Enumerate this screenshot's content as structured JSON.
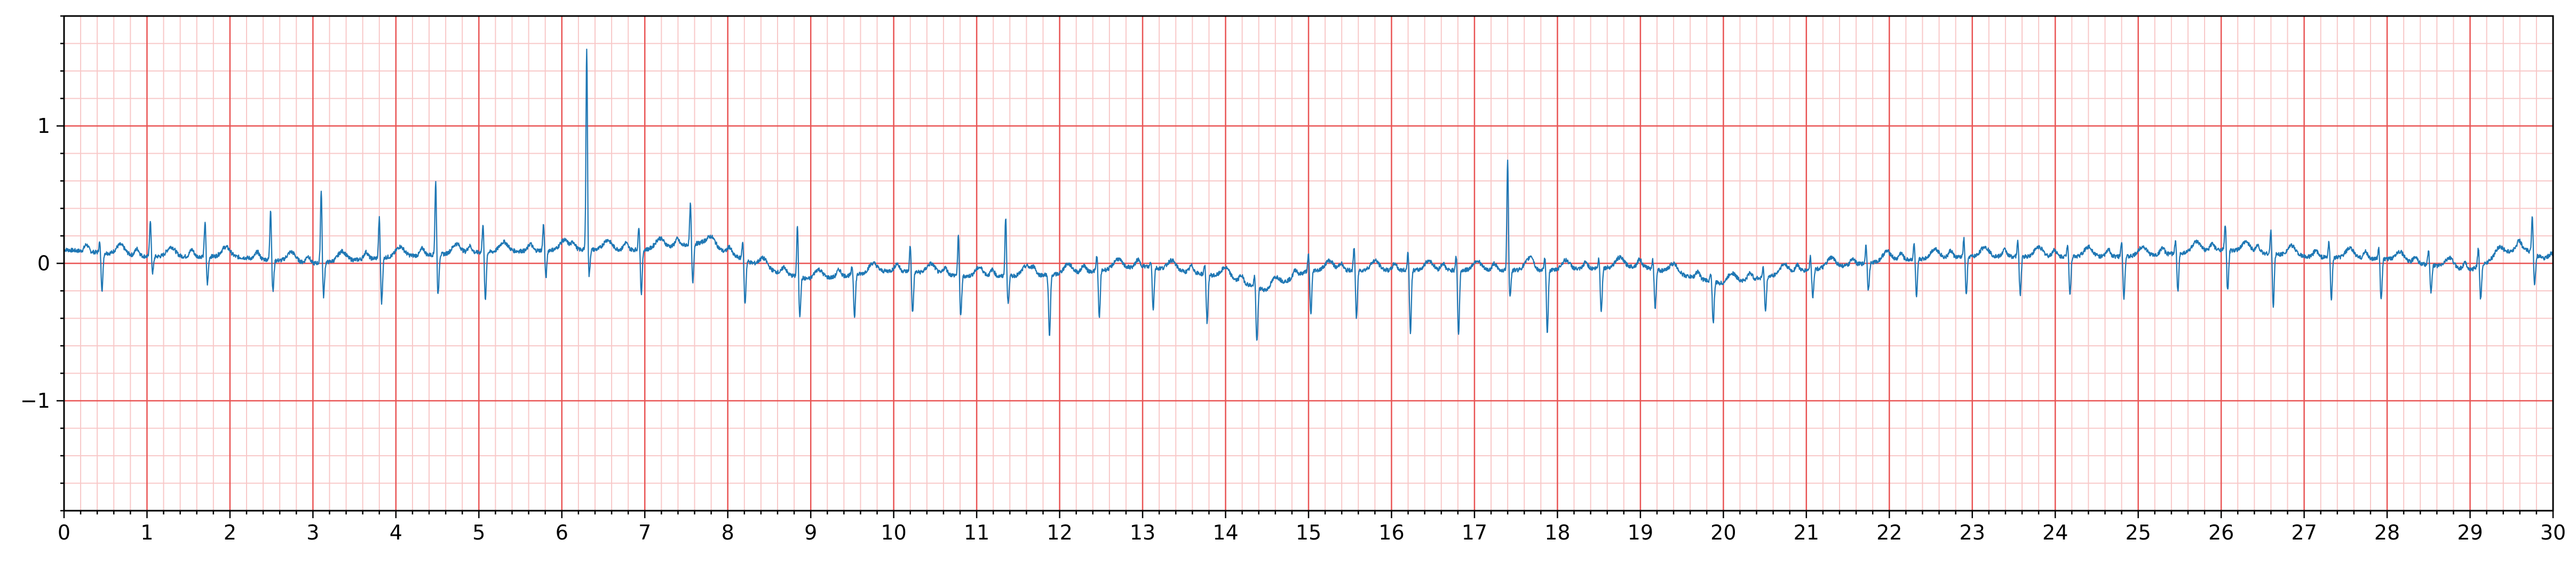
{
  "chart_data": {
    "type": "line",
    "title": "",
    "xlabel": "",
    "ylabel": "",
    "xlim": [
      0,
      30
    ],
    "ylim": [
      -1.8,
      1.8
    ],
    "x_ticks": [
      0,
      1,
      2,
      3,
      4,
      5,
      6,
      7,
      8,
      9,
      10,
      11,
      12,
      13,
      14,
      15,
      16,
      17,
      18,
      19,
      20,
      21,
      22,
      23,
      24,
      25,
      26,
      27,
      28,
      29,
      30
    ],
    "x_tick_labels": [
      "0",
      "1",
      "2",
      "3",
      "4",
      "5",
      "6",
      "7",
      "8",
      "9",
      "10",
      "11",
      "12",
      "13",
      "14",
      "15",
      "16",
      "17",
      "18",
      "19",
      "20",
      "21",
      "22",
      "23",
      "24",
      "25",
      "26",
      "27",
      "28",
      "29",
      "30"
    ],
    "y_ticks": [
      -1,
      0,
      1
    ],
    "y_tick_labels": [
      "−1",
      "0",
      "1"
    ],
    "grid": {
      "major": true,
      "minor": true,
      "major_color": "#e95454",
      "minor_color": "#f8c8c8"
    },
    "line_color": "#1f77b4",
    "series": [
      {
        "beats": [
          {
            "t": 0.43,
            "r": 0.08,
            "s": -0.27
          },
          {
            "t": 1.04,
            "r": 0.27,
            "s": -0.12
          },
          {
            "t": 1.7,
            "r": 0.26,
            "s": -0.2
          },
          {
            "t": 2.49,
            "r": 0.38,
            "s": -0.23
          },
          {
            "t": 3.1,
            "r": 0.54,
            "s": -0.25
          },
          {
            "t": 3.8,
            "r": 0.3,
            "s": -0.33
          },
          {
            "t": 4.48,
            "r": 0.54,
            "s": -0.3
          },
          {
            "t": 5.05,
            "r": 0.22,
            "s": -0.35
          },
          {
            "t": 5.78,
            "r": 0.2,
            "s": -0.2
          },
          {
            "t": 6.3,
            "r": 1.47,
            "s": -0.2
          },
          {
            "t": 6.93,
            "r": 0.18,
            "s": -0.32
          },
          {
            "t": 7.55,
            "r": 0.3,
            "s": -0.28
          },
          {
            "t": 8.18,
            "r": 0.14,
            "s": -0.32
          },
          {
            "t": 8.84,
            "r": 0.38,
            "s": -0.28
          },
          {
            "t": 9.5,
            "r": 0.07,
            "s": -0.3
          },
          {
            "t": 10.2,
            "r": 0.2,
            "s": -0.3
          },
          {
            "t": 10.78,
            "r": 0.3,
            "s": -0.3
          },
          {
            "t": 11.35,
            "r": 0.44,
            "s": -0.2
          },
          {
            "t": 11.85,
            "r": 0.0,
            "s": -0.45
          },
          {
            "t": 12.45,
            "r": 0.12,
            "s": -0.35
          },
          {
            "t": 13.1,
            "r": 0.05,
            "s": -0.3
          },
          {
            "t": 13.75,
            "r": 0.08,
            "s": -0.35
          },
          {
            "t": 14.35,
            "r": 0.08,
            "s": -0.4
          },
          {
            "t": 15.0,
            "r": 0.12,
            "s": -0.32
          },
          {
            "t": 15.55,
            "r": 0.18,
            "s": -0.35
          },
          {
            "t": 16.2,
            "r": 0.15,
            "s": -0.45
          },
          {
            "t": 16.78,
            "r": 0.12,
            "s": -0.47
          },
          {
            "t": 17.4,
            "r": 0.82,
            "s": -0.2
          },
          {
            "t": 17.85,
            "r": 0.1,
            "s": -0.45
          },
          {
            "t": 18.5,
            "r": 0.08,
            "s": -0.32
          },
          {
            "t": 19.15,
            "r": 0.07,
            "s": -0.28
          },
          {
            "t": 19.85,
            "r": 0.06,
            "s": -0.3
          },
          {
            "t": 20.48,
            "r": 0.08,
            "s": -0.25
          },
          {
            "t": 21.05,
            "r": 0.1,
            "s": -0.2
          },
          {
            "t": 21.72,
            "r": 0.14,
            "s": -0.2
          },
          {
            "t": 22.3,
            "r": 0.12,
            "s": -0.28
          },
          {
            "t": 22.9,
            "r": 0.14,
            "s": -0.28
          },
          {
            "t": 23.55,
            "r": 0.12,
            "s": -0.28
          },
          {
            "t": 24.15,
            "r": 0.1,
            "s": -0.28
          },
          {
            "t": 24.8,
            "r": 0.12,
            "s": -0.3
          },
          {
            "t": 25.45,
            "r": 0.1,
            "s": -0.28
          },
          {
            "t": 26.05,
            "r": 0.2,
            "s": -0.3
          },
          {
            "t": 26.6,
            "r": 0.18,
            "s": -0.38
          },
          {
            "t": 27.3,
            "r": 0.12,
            "s": -0.3
          },
          {
            "t": 27.9,
            "r": 0.1,
            "s": -0.3
          },
          {
            "t": 28.5,
            "r": 0.12,
            "s": -0.2
          },
          {
            "t": 29.1,
            "r": 0.14,
            "s": -0.25
          },
          {
            "t": 29.75,
            "r": 0.28,
            "s": -0.22
          }
        ],
        "baseline": [
          [
            0,
            0.1
          ],
          [
            1,
            0.05
          ],
          [
            2,
            0.05
          ],
          [
            3,
            0.0
          ],
          [
            4,
            0.05
          ],
          [
            5,
            0.08
          ],
          [
            6,
            0.1
          ],
          [
            7,
            0.1
          ],
          [
            7.7,
            0.15
          ],
          [
            8.5,
            -0.05
          ],
          [
            9,
            -0.12
          ],
          [
            10,
            -0.05
          ],
          [
            11,
            -0.1
          ],
          [
            12,
            -0.08
          ],
          [
            13,
            -0.02
          ],
          [
            14,
            -0.1
          ],
          [
            14.5,
            -0.2
          ],
          [
            15,
            -0.05
          ],
          [
            16,
            -0.05
          ],
          [
            17,
            -0.05
          ],
          [
            18,
            -0.05
          ],
          [
            19,
            -0.02
          ],
          [
            20,
            -0.15
          ],
          [
            21,
            -0.05
          ],
          [
            22,
            0.02
          ],
          [
            23,
            0.05
          ],
          [
            24,
            0.05
          ],
          [
            25,
            0.05
          ],
          [
            26,
            0.1
          ],
          [
            27,
            0.05
          ],
          [
            28,
            0.03
          ],
          [
            29,
            -0.05
          ],
          [
            29.6,
            0.12
          ],
          [
            30,
            0.0
          ]
        ]
      }
    ]
  }
}
